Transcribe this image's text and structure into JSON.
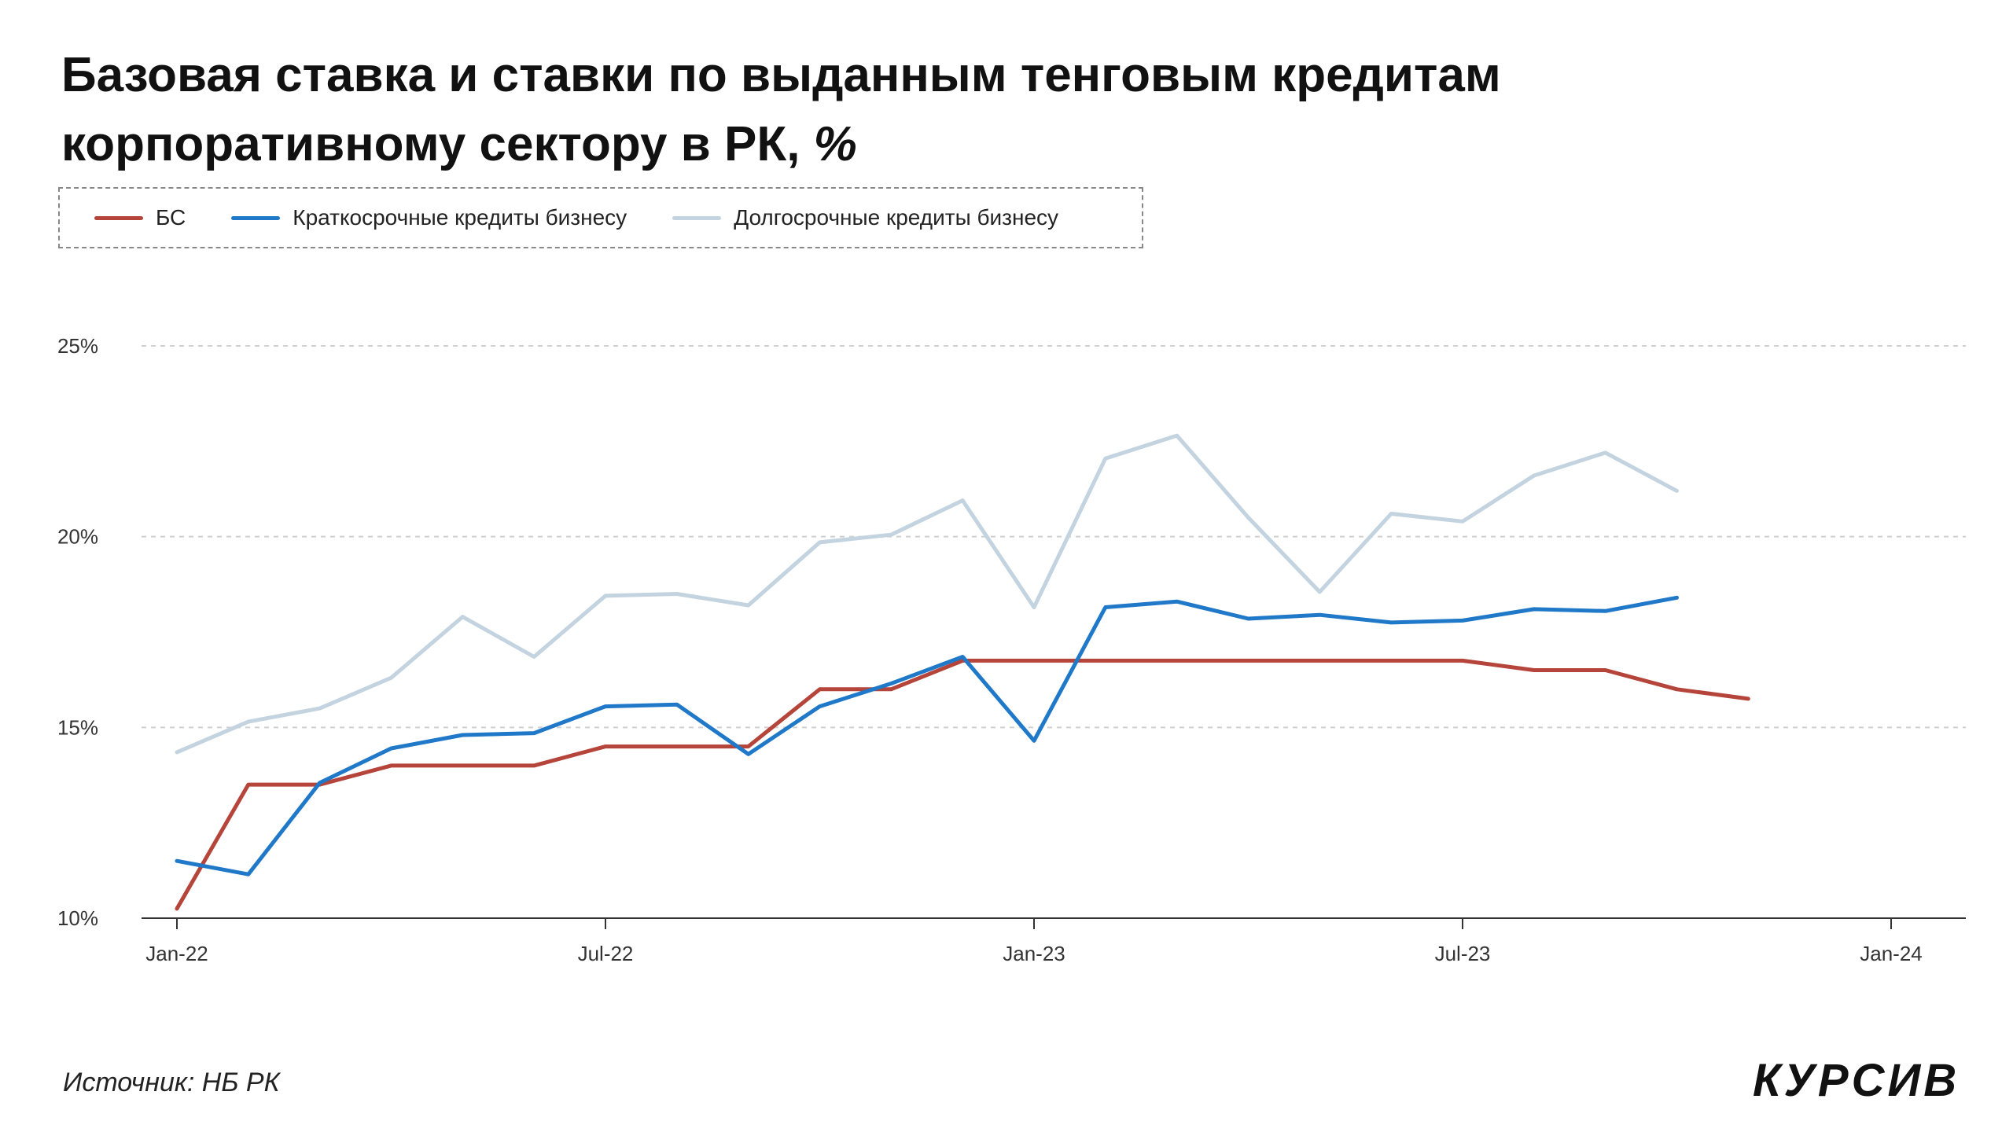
{
  "title": {
    "line1": "Базовая ставка и ставки по выданным тенговым кредитам",
    "line2": "корпоративному сектору в РК,",
    "unit": "%"
  },
  "source": "Источник: НБ РК",
  "logo_text": "КУРСИВ",
  "chart_data": {
    "type": "line",
    "x": [
      "2022-01",
      "2022-02",
      "2022-03",
      "2022-04",
      "2022-05",
      "2022-06",
      "2022-07",
      "2022-08",
      "2022-09",
      "2022-10",
      "2022-11",
      "2022-12",
      "2023-01",
      "2023-02",
      "2023-03",
      "2023-04",
      "2023-05",
      "2023-06",
      "2023-07",
      "2023-08",
      "2023-09",
      "2023-10",
      "2023-11"
    ],
    "x_ticks": [
      "Jan-22",
      "Jul-22",
      "Jan-23",
      "Jul-23",
      "Jan-24"
    ],
    "x_range": [
      "2022-01",
      "2024-01"
    ],
    "y_ticks": [
      "10%",
      "15%",
      "20%",
      "25%"
    ],
    "y_tick_values": [
      10,
      15,
      20,
      25
    ],
    "ylim": [
      10,
      25
    ],
    "grid": "horizontal dashed",
    "legend_position": "top-left",
    "series": [
      {
        "name": "БС",
        "color": "#b5443a",
        "values": [
          10.25,
          13.5,
          13.5,
          14.0,
          14.0,
          14.0,
          14.5,
          14.5,
          14.5,
          16.0,
          16.0,
          16.75,
          16.75,
          16.75,
          16.75,
          16.75,
          16.75,
          16.75,
          16.75,
          16.5,
          16.5,
          16.0,
          15.75
        ]
      },
      {
        "name": "Краткосрочные кредиты бизнесу",
        "color": "#1f78c8",
        "values": [
          11.5,
          11.15,
          13.55,
          14.45,
          14.8,
          14.85,
          15.55,
          15.6,
          14.3,
          15.55,
          16.15,
          16.85,
          14.65,
          18.15,
          18.3,
          17.85,
          17.95,
          17.75,
          17.8,
          18.1,
          18.05,
          18.4,
          null
        ]
      },
      {
        "name": "Долгосрочные кредиты бизнесу",
        "color": "#c3d3e0",
        "values": [
          14.35,
          15.15,
          15.5,
          16.3,
          17.9,
          16.85,
          18.45,
          18.5,
          18.2,
          19.85,
          20.05,
          20.95,
          18.15,
          22.05,
          22.65,
          20.5,
          18.55,
          20.6,
          20.4,
          21.6,
          22.2,
          21.2,
          null
        ]
      }
    ]
  }
}
